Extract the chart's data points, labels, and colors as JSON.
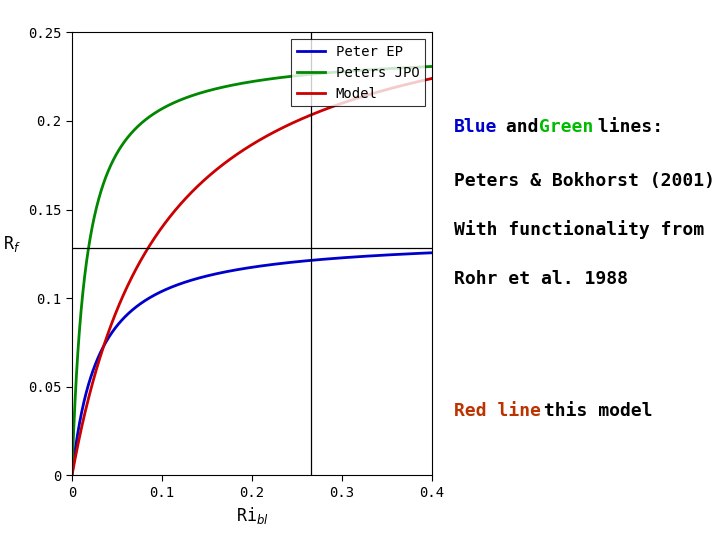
{
  "xlim": [
    0,
    0.4
  ],
  "ylim": [
    0,
    0.25
  ],
  "xticks": [
    0,
    0.1,
    0.2,
    0.3,
    0.4
  ],
  "yticks": [
    0,
    0.05,
    0.1,
    0.15,
    0.2,
    0.25
  ],
  "legend_labels": [
    "Peter EP",
    "Peters JPO",
    "Model"
  ],
  "blue_color": "#0000cc",
  "green_color": "#008800",
  "red_color": "#cc0000",
  "red_text_color": "#bb3300",
  "green_text_color": "#00bb00",
  "blue_text_color": "#0000cc",
  "vline_x": 0.265,
  "hline_y": 0.128,
  "background_color": "#ffffff",
  "font_size_annotation": 13,
  "font_size_tick": 10,
  "font_size_legend": 10,
  "blue_asymptote": 0.135,
  "blue_k": 0.03,
  "green_asymptote": 0.24,
  "green_k": 0.016,
  "red_asymptote": 0.28,
  "red_k": 0.1
}
